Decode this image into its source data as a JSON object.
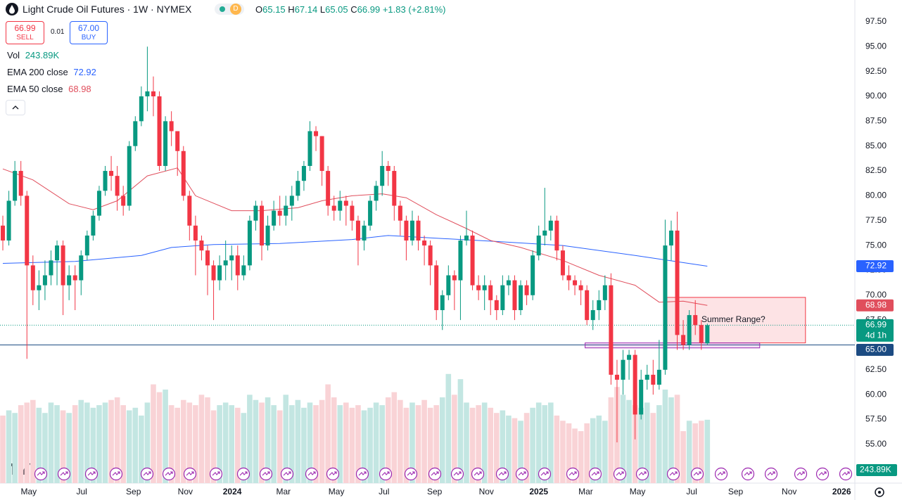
{
  "header": {
    "title": "Light Crude Oil Futures · 1W · NYMEX",
    "badge": "D",
    "ohlc": [
      {
        "label": "O",
        "value": 65.15
      },
      {
        "label": "H",
        "value": 67.14
      },
      {
        "label": "L",
        "value": 65.05
      },
      {
        "label": "C",
        "value": 66.99
      }
    ],
    "change": "+1.83",
    "change_pct": "(+2.81%)"
  },
  "trade": {
    "sell_price": 66.99,
    "sell": "SELL",
    "spread": 0.01,
    "buy_price": "67.00",
    "buy": "BUY"
  },
  "chart_data": {
    "type": "candlestick",
    "up_color": "#089981",
    "down_color": "#f23645",
    "volume_up_color": "#c3e6e2",
    "volume_down_color": "#f9d3d6",
    "xlim": [
      -0.47,
      141.5
    ],
    "ylim": [
      51.1,
      99.69
    ],
    "volume_lim": [
      0,
      460
    ],
    "grid": false,
    "xticks": [
      {
        "value": 4.3,
        "label": "May"
      },
      {
        "value": 13.1,
        "label": "Jul"
      },
      {
        "value": 21.7,
        "label": "Sep"
      },
      {
        "value": 30.3,
        "label": "Nov"
      },
      {
        "value": 38.1,
        "label": "2024"
      },
      {
        "value": 46.6,
        "label": "Mar"
      },
      {
        "value": 55.4,
        "label": "May"
      },
      {
        "value": 63.3,
        "label": "Jul"
      },
      {
        "value": 71.7,
        "label": "Sep"
      },
      {
        "value": 80.3,
        "label": "Nov"
      },
      {
        "value": 89,
        "label": "2025"
      },
      {
        "value": 96.8,
        "label": "Mar"
      },
      {
        "value": 105.4,
        "label": "May"
      },
      {
        "value": 114.4,
        "label": "Jul"
      },
      {
        "value": 121.7,
        "label": "Sep"
      },
      {
        "value": 130.6,
        "label": "Nov"
      },
      {
        "value": 139.3,
        "label": "2026"
      }
    ],
    "yticks": [
      {
        "value": 55,
        "label": "55.00"
      },
      {
        "value": 57.5,
        "label": "57.50"
      },
      {
        "value": 60,
        "label": "60.00"
      },
      {
        "value": 62.5,
        "label": "62.50"
      },
      {
        "value": 67.5,
        "label": "67.50"
      },
      {
        "value": 70,
        "label": "70.00"
      },
      {
        "value": 72.5,
        "label": "72.50"
      },
      {
        "value": 75,
        "label": "75.00"
      },
      {
        "value": 77.5,
        "label": "77.50"
      },
      {
        "value": 80,
        "label": "80.00"
      },
      {
        "value": 82.5,
        "label": "82.50"
      },
      {
        "value": 85,
        "label": "85.00"
      },
      {
        "value": 87.5,
        "label": "87.50"
      },
      {
        "value": 90,
        "label": "90.00"
      },
      {
        "value": 92.5,
        "label": "92.50"
      },
      {
        "value": 95,
        "label": "95.00"
      },
      {
        "value": 97.5,
        "label": "97.50"
      }
    ],
    "open": [
      77,
      75.5,
      79.5,
      82.5,
      80,
      73,
      70.5,
      71,
      72,
      73.5,
      75,
      71,
      72,
      71.5,
      74,
      76,
      78,
      80.5,
      82.5,
      82,
      80,
      79,
      85,
      87.5,
      90,
      90.5,
      90,
      83,
      87.5,
      86.5,
      84.5,
      80,
      77,
      75.5,
      74.5,
      73,
      71.5,
      73,
      73.5,
      74,
      72,
      73,
      77.5,
      79,
      75,
      77,
      78.5,
      78,
      79,
      80,
      81.5,
      83,
      86.5,
      86,
      82.5,
      79,
      78.5,
      79.5,
      79,
      77.5,
      75.5,
      77,
      79.5,
      81,
      83,
      82.5,
      79,
      77.5,
      75.5,
      77.5,
      75.5,
      75,
      73,
      68.5,
      70,
      72,
      71.5,
      75.5,
      76,
      71,
      70.5,
      71,
      69.5,
      68.5,
      71,
      71.5,
      68.5,
      71,
      70,
      74,
      76,
      76.5,
      77.5,
      74.5,
      72,
      71.5,
      71,
      70.5,
      67.5,
      68.5,
      69.5,
      71,
      62,
      61.5,
      63.5,
      64,
      58,
      61.5,
      62,
      61,
      62.5,
      75,
      76.5,
      66,
      65,
      68,
      67,
      65.15
    ],
    "high": [
      78,
      80.5,
      83.5,
      83.5,
      80.5,
      74,
      72.5,
      73.5,
      74.5,
      75.5,
      75.5,
      73,
      73,
      74.5,
      76.5,
      78.5,
      81,
      83,
      84,
      83,
      81,
      85.5,
      88,
      91,
      95,
      92,
      90.5,
      88,
      88.5,
      86.5,
      85,
      80.5,
      78,
      76,
      75,
      73.5,
      74,
      75.5,
      75,
      75,
      74,
      78,
      79.5,
      79.5,
      78,
      79.5,
      80,
      80,
      81,
      82.5,
      83.5,
      87.5,
      87,
      86,
      83,
      80,
      80.5,
      80,
      79.5,
      78,
      77.5,
      80,
      81.5,
      84.5,
      83.5,
      83,
      79.5,
      78,
      78.5,
      78,
      76,
      75.5,
      73.5,
      70.5,
      73,
      72.5,
      76,
      78.5,
      76.5,
      72,
      72,
      71.5,
      70,
      72,
      72,
      72,
      71.5,
      71.5,
      74.5,
      77,
      80.8,
      78,
      78,
      75,
      73,
      72,
      71.5,
      71,
      69.5,
      70.5,
      72,
      72.2,
      63.5,
      64.5,
      64.5,
      64.5,
      62.5,
      63,
      63.5,
      65.5,
      77.6,
      77.5,
      78.4,
      67.5,
      68.5,
      69.5,
      67.5,
      67.14
    ],
    "low": [
      74.5,
      75,
      79,
      79,
      63.6,
      69,
      68.5,
      69.5,
      71,
      71,
      68,
      69.5,
      68.5,
      70,
      73.5,
      75.5,
      77.5,
      80,
      80.5,
      78.5,
      78,
      78.5,
      84.5,
      87,
      88.5,
      88,
      82.5,
      82.5,
      85,
      82,
      79.5,
      75.5,
      72,
      73.5,
      70,
      67.5,
      70.5,
      71.5,
      71.5,
      70.5,
      71.5,
      72.5,
      76.5,
      73.5,
      74.5,
      76.5,
      77,
      77,
      77.5,
      79.5,
      80.5,
      82.5,
      84.5,
      81,
      78,
      77.5,
      77.5,
      77,
      76.5,
      73,
      74.5,
      76.5,
      78.5,
      80,
      81,
      77.5,
      76,
      73.5,
      75,
      74.5,
      73,
      71,
      67.5,
      66.5,
      69.5,
      68.5,
      67.5,
      75,
      70.5,
      69.5,
      68.5,
      68,
      67.5,
      68,
      70,
      67.5,
      68,
      69,
      69.5,
      73.5,
      75,
      75.5,
      73.5,
      71.5,
      70.5,
      70,
      69,
      67,
      66.5,
      67.5,
      68.5,
      61,
      55.2,
      60,
      61.5,
      55.5,
      57.5,
      60.5,
      60,
      60.5,
      62,
      73.5,
      64.5,
      64.5,
      64.5,
      66,
      64.5,
      65.05
    ],
    "close": [
      75.5,
      79.5,
      82.5,
      80,
      73,
      70.5,
      71,
      72,
      73.5,
      75,
      71,
      72,
      71.5,
      74,
      76,
      78,
      80.5,
      82.5,
      82,
      80,
      79,
      85,
      87.5,
      90,
      90.5,
      90,
      83,
      87.5,
      86.5,
      84.5,
      80,
      77,
      75.5,
      74.5,
      73,
      71.5,
      73,
      73.5,
      74,
      72,
      73,
      77.5,
      79,
      75,
      77,
      78.5,
      78,
      79,
      80,
      81.5,
      83,
      86.5,
      86,
      82.5,
      79,
      78.5,
      79.5,
      79,
      77.5,
      75.5,
      77,
      79.5,
      81,
      83,
      82.5,
      79,
      77.5,
      75.5,
      77.5,
      75.5,
      75,
      73,
      68.5,
      70,
      72,
      71.5,
      75.5,
      76,
      71,
      70.5,
      71,
      69.5,
      68.5,
      71,
      71.5,
      68.5,
      71,
      70,
      74,
      76,
      76.5,
      77.5,
      74.5,
      72,
      71.5,
      71,
      70.5,
      67.5,
      68.5,
      69.5,
      71,
      62,
      61.5,
      63.5,
      64,
      58,
      61.5,
      62,
      61,
      62.5,
      75,
      76.5,
      66,
      65,
      68,
      67,
      65.2,
      66.99
    ],
    "volume_name": "Vol",
    "volume": [
      260,
      280,
      270,
      300,
      310,
      320,
      290,
      270,
      310,
      300,
      280,
      270,
      300,
      320,
      310,
      290,
      300,
      310,
      320,
      330,
      300,
      280,
      290,
      260,
      310,
      380,
      350,
      360,
      300,
      290,
      320,
      310,
      300,
      340,
      330,
      280,
      300,
      310,
      300,
      290,
      270,
      340,
      320,
      310,
      330,
      300,
      280,
      340,
      300,
      320,
      290,
      310,
      300,
      320,
      380,
      330,
      300,
      310,
      290,
      300,
      280,
      290,
      310,
      300,
      330,
      350,
      320,
      290,
      310,
      300,
      320,
      290,
      300,
      330,
      420,
      340,
      400,
      310,
      290,
      300,
      310,
      290,
      270,
      280,
      260,
      250,
      240,
      270,
      290,
      310,
      300,
      310,
      260,
      240,
      230,
      210,
      200,
      230,
      250,
      260,
      240,
      330,
      370,
      340,
      320,
      300,
      290,
      310,
      270,
      300,
      360,
      330,
      340,
      200,
      240,
      230,
      240,
      243.89
    ],
    "volume_last_label": "243.89K",
    "ema": [
      {
        "name": "EMA 200 close",
        "color": "#2962ff",
        "x": [
          0,
          12,
          23,
          28,
          35,
          46,
          58,
          64,
          70,
          82,
          93,
          105,
          117
        ],
        "values": [
          73.2,
          73.4,
          74,
          74.8,
          75.1,
          75.2,
          75.6,
          76,
          75.8,
          75.4,
          75,
          74,
          72.92
        ]
      },
      {
        "name": "EMA 50 close",
        "color": "#e04e5c",
        "x": [
          0,
          5,
          11,
          15,
          19,
          24,
          29,
          32,
          38,
          43,
          49,
          53,
          58,
          63,
          67,
          72,
          77,
          81,
          86,
          93,
          99,
          105,
          109,
          113,
          117
        ],
        "values": [
          82.7,
          81.6,
          79.2,
          78.6,
          79.5,
          82,
          82.8,
          80,
          78.5,
          78.5,
          78.8,
          79.5,
          80,
          80.2,
          79.8,
          78.1,
          76.7,
          75.5,
          74.8,
          73.5,
          72,
          71,
          69.3,
          69.4,
          68.98
        ]
      }
    ],
    "last_price": {
      "value": 66.99,
      "label": "66.99",
      "countdown": "4d 1h"
    },
    "hline": {
      "value": 65,
      "label": "65.00",
      "color": "#1c4b82"
    },
    "zones": [
      {
        "x": [
          110.3,
          133.3
        ],
        "y": [
          65.2,
          69.78
        ],
        "color": "#f23645",
        "text": "Summer Range?"
      },
      {
        "x": [
          96.7,
          125.7
        ],
        "y": [
          64.7,
          65.2
        ],
        "color": "#9c27b0"
      }
    ]
  }
}
